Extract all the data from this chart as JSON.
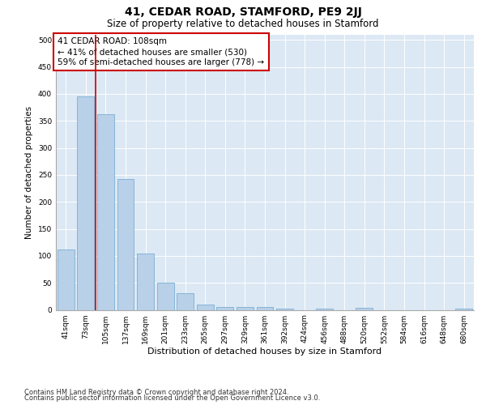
{
  "title": "41, CEDAR ROAD, STAMFORD, PE9 2JJ",
  "subtitle": "Size of property relative to detached houses in Stamford",
  "xlabel": "Distribution of detached houses by size in Stamford",
  "ylabel": "Number of detached properties",
  "categories": [
    "41sqm",
    "73sqm",
    "105sqm",
    "137sqm",
    "169sqm",
    "201sqm",
    "233sqm",
    "265sqm",
    "297sqm",
    "329sqm",
    "361sqm",
    "392sqm",
    "424sqm",
    "456sqm",
    "488sqm",
    "520sqm",
    "552sqm",
    "584sqm",
    "616sqm",
    "648sqm",
    "680sqm"
  ],
  "values": [
    112,
    396,
    362,
    243,
    104,
    50,
    31,
    10,
    6,
    5,
    6,
    2,
    0,
    3,
    0,
    4,
    0,
    0,
    0,
    0,
    3
  ],
  "bar_color": "#b8d0e8",
  "bar_edge_color": "#7aafd4",
  "vline_x_index": 2,
  "vline_color": "#cc0000",
  "annotation_text": "41 CEDAR ROAD: 108sqm\n← 41% of detached houses are smaller (530)\n59% of semi-detached houses are larger (778) →",
  "annotation_box_color": "#ffffff",
  "annotation_box_edge_color": "#cc0000",
  "ylim": [
    0,
    510
  ],
  "yticks": [
    0,
    50,
    100,
    150,
    200,
    250,
    300,
    350,
    400,
    450,
    500
  ],
  "background_color": "#dce8f4",
  "footer_line1": "Contains HM Land Registry data © Crown copyright and database right 2024.",
  "footer_line2": "Contains public sector information licensed under the Open Government Licence v3.0.",
  "title_fontsize": 10,
  "subtitle_fontsize": 8.5,
  "xlabel_fontsize": 8,
  "ylabel_fontsize": 7.5,
  "tick_fontsize": 6.5,
  "annotation_fontsize": 7.5,
  "footer_fontsize": 6
}
